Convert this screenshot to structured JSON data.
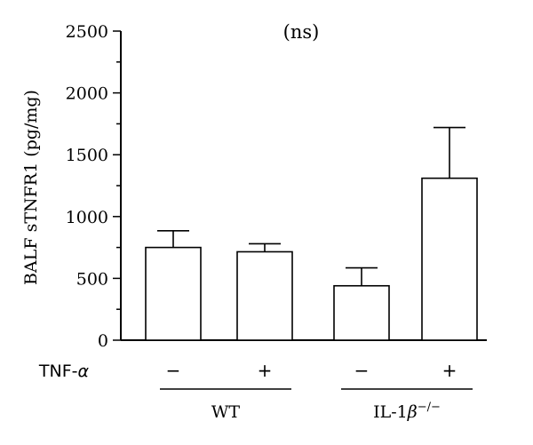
{
  "chart_data": {
    "type": "bar",
    "annotation": "(ns)",
    "ylabel": "BALF sTNFR1 (pg/mg)",
    "ylim": [
      0,
      2500
    ],
    "y_ticks": [
      "0",
      "500",
      "1000",
      "1500",
      "2000",
      "2500"
    ],
    "x_row_label": "TNF-α",
    "categories": [
      "−",
      "+",
      "−",
      "+"
    ],
    "values": [
      750,
      715,
      440,
      1310
    ],
    "errors": [
      135,
      65,
      145,
      410
    ],
    "groups": [
      {
        "label": "WT",
        "categories": [
          0,
          1
        ]
      },
      {
        "label_base": "IL-1",
        "label_italic": "β",
        "label_sup": "−/−",
        "categories": [
          2,
          3
        ]
      }
    ],
    "bar_fill": "#ffffff",
    "stroke_color": "#000000",
    "grid": false,
    "legend": "none"
  }
}
